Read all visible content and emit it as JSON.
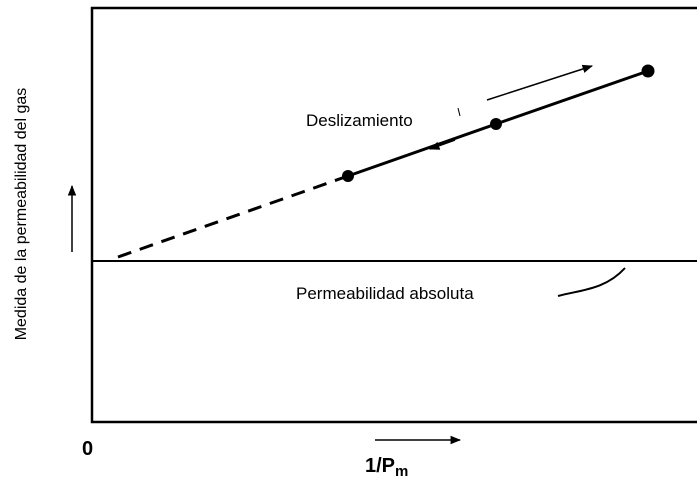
{
  "y_axis_label": "Medida de la  permeabilidad del gas",
  "x_axis_label": {
    "main": "1/P",
    "sub": "m"
  },
  "origin_label": "0",
  "annotations": {
    "slip": "Deslizamiento",
    "absolute": "Permeabilidad absoluta"
  }
}
